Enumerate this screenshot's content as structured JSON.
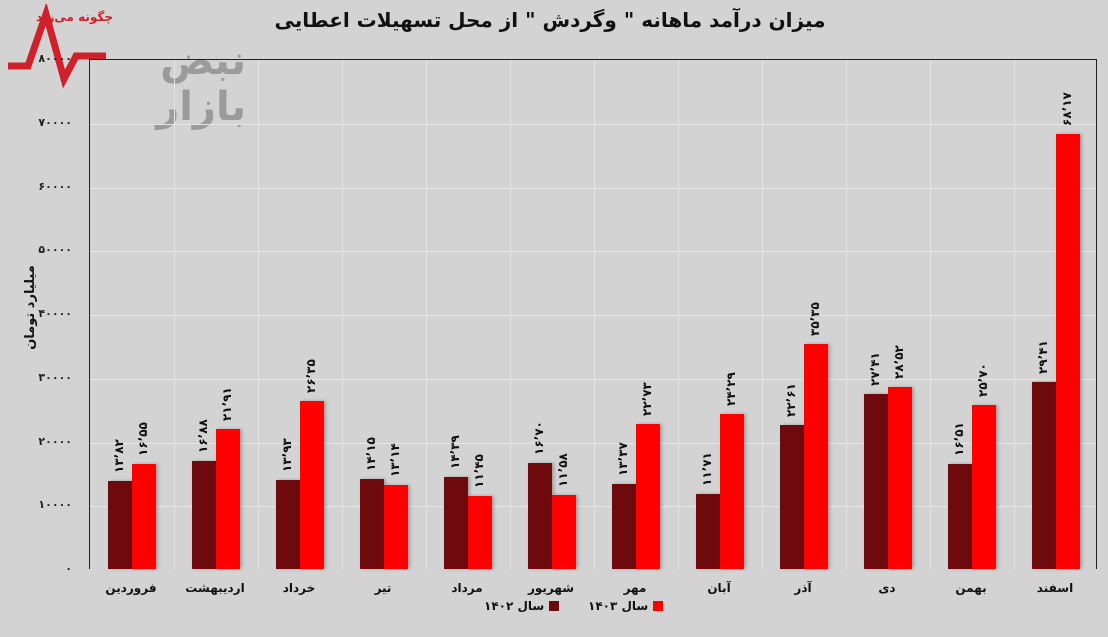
{
  "title": "میزان درآمد ماهانه \" وگردش \" از محل تسهیلات اعطایی",
  "logo": {
    "tagline": "چگونه می‌زند",
    "name": "نبض بازار"
  },
  "y_axis": {
    "label": "میلیارد تومان",
    "ticks": [
      "۰",
      "۱۰۰۰۰",
      "۲۰۰۰۰",
      "۳۰۰۰۰",
      "۴۰۰۰۰",
      "۵۰۰۰۰",
      "۶۰۰۰۰",
      "۷۰۰۰۰",
      "۸۰۰۰۰"
    ]
  },
  "legend": {
    "series1": "سال ۱۴۰۲",
    "series2": "سال ۱۴۰۳"
  },
  "colors": {
    "series1": "#6e0a0e",
    "series2": "#ff0000",
    "background": "#d3d3d3"
  },
  "labels": {
    "series1": [
      "۱۳٬۸۲",
      "۱۶٬۸۸",
      "۱۳٬۹۳",
      "۱۴٬۱۵",
      "۱۴٬۳۹",
      "۱۶٬۷۰",
      "۱۳٬۳۷",
      "۱۱٬۷۱",
      "۲۲٬۶۱",
      "۲۷٬۴۱",
      "۱۶٬۵۱",
      "۲۹٬۴۱"
    ],
    "series2": [
      "۱۶٬۵۵",
      "۲۱٬۹۱",
      "۲۶٬۳۵",
      "۱۳٬۱۴",
      "۱۱٬۴۵",
      "۱۱٬۵۸",
      "۲۲٬۷۳",
      "۲۴٬۲۹",
      "۳۵٬۳۵",
      "۲۸٬۵۲",
      "۲۵٬۷۰",
      "۶۸٬۱۷"
    ]
  },
  "chart_data": {
    "type": "bar",
    "title": "میزان درآمد ماهانه \" وگردش \" از محل تسهیلات اعطایی",
    "xlabel": "",
    "ylabel": "میلیارد تومان",
    "ylim": [
      0,
      80000
    ],
    "yticks": [
      0,
      10000,
      20000,
      30000,
      40000,
      50000,
      60000,
      70000,
      80000
    ],
    "grid": true,
    "legend_position": "bottom",
    "categories": [
      "فروردین",
      "اردیبهشت",
      "خرداد",
      "تیر",
      "مرداد",
      "شهریور",
      "مهر",
      "آبان",
      "آذر",
      "دی",
      "بهمن",
      "اسفند"
    ],
    "series": [
      {
        "name": "سال ۱۴۰۲",
        "values": [
          13820,
          16880,
          13930,
          14150,
          14390,
          16700,
          13370,
          11710,
          22610,
          27410,
          16510,
          29410
        ]
      },
      {
        "name": "سال ۱۴۰۳",
        "values": [
          16550,
          21910,
          26350,
          13140,
          11450,
          11580,
          22730,
          24290,
          35350,
          28520,
          25700,
          68170
        ]
      }
    ]
  }
}
